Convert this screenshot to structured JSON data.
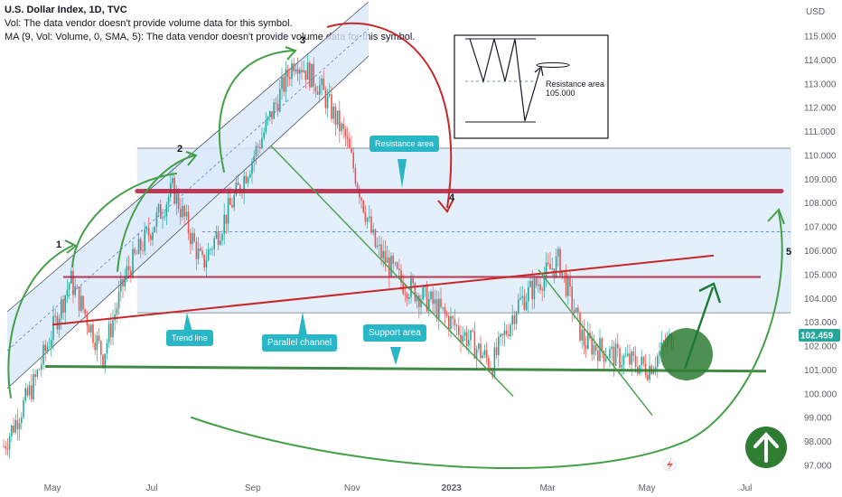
{
  "legend": {
    "title": "U.S. Dollar Index, 1D, TVC",
    "vol_line": "Vol: The data vendor doesn't provide volume data for this symbol.",
    "ma_line": "MA (9, Vol: Volume, 0, SMA, 5): The data vendor doesn't provide volume data for this symbol."
  },
  "colors": {
    "channel_fill": "#dbe9fb",
    "channel_line": "#4a5568",
    "resistance": "#b71c3a",
    "support": "#2e7d32",
    "trend_red": "#c62828",
    "arc_green": "#43a047",
    "callout": "#29b6c6",
    "candle_up": "#26a69a",
    "candle_down": "#ef5350",
    "price_badge": "#26a69a"
  },
  "annotations": {
    "resistance_area": "Resistance area",
    "trend_line": "Trend line",
    "parallel_channel": "Parallel channel",
    "support_area": "Support area",
    "inset_resistance": "Resistance area",
    "inset_value": "105.000",
    "wave_1": "1",
    "wave_2": "2",
    "wave_3": "3",
    "wave_4": "4",
    "wave_5": "5"
  },
  "chart_data": {
    "type": "line",
    "title": "U.S. Dollar Index, 1D, TVC",
    "y_axis_unit": "USD",
    "current_price": "102.459",
    "ylim": [
      96.6,
      116.2
    ],
    "y_ticks": [
      "115.000",
      "114.000",
      "113.000",
      "112.000",
      "111.000",
      "110.000",
      "109.000",
      "108.000",
      "107.000",
      "106.000",
      "105.000",
      "104.000",
      "103.000",
      "102.000",
      "101.000",
      "100.000",
      "99.000",
      "98.000",
      "97.000"
    ],
    "x_ticks": [
      "May",
      "Jul",
      "Sep",
      "Nov",
      "2023",
      "Mar",
      "May",
      "Jul"
    ],
    "levels": {
      "resistance_band": 108.5,
      "mid_resistance": 104.9,
      "support": 101.0,
      "upper_box_top": 110.3,
      "upper_box_bottom": 103.4,
      "dashed_level": 106.8
    },
    "series": [
      {
        "x": [
          "2022-04-01",
          "2022-04-20",
          "2022-05-12",
          "2022-06-01",
          "2022-06-15",
          "2022-07-14",
          "2022-08-01",
          "2022-08-22",
          "2022-09-05",
          "2022-09-27",
          "2022-10-12",
          "2022-10-28",
          "2022-11-15",
          "2022-12-01",
          "2022-12-20",
          "2023-01-10",
          "2023-01-26",
          "2023-02-10",
          "2023-03-08",
          "2023-03-23",
          "2023-04-14",
          "2023-05-02",
          "2023-05-18"
        ],
        "y": [
          97.8,
          100.5,
          104.8,
          101.6,
          105.0,
          108.6,
          105.4,
          108.4,
          110.5,
          114.1,
          112.9,
          110.7,
          106.2,
          104.7,
          103.8,
          102.4,
          101.2,
          103.7,
          105.6,
          102.2,
          101.5,
          101.1,
          102.5
        ]
      }
    ]
  }
}
